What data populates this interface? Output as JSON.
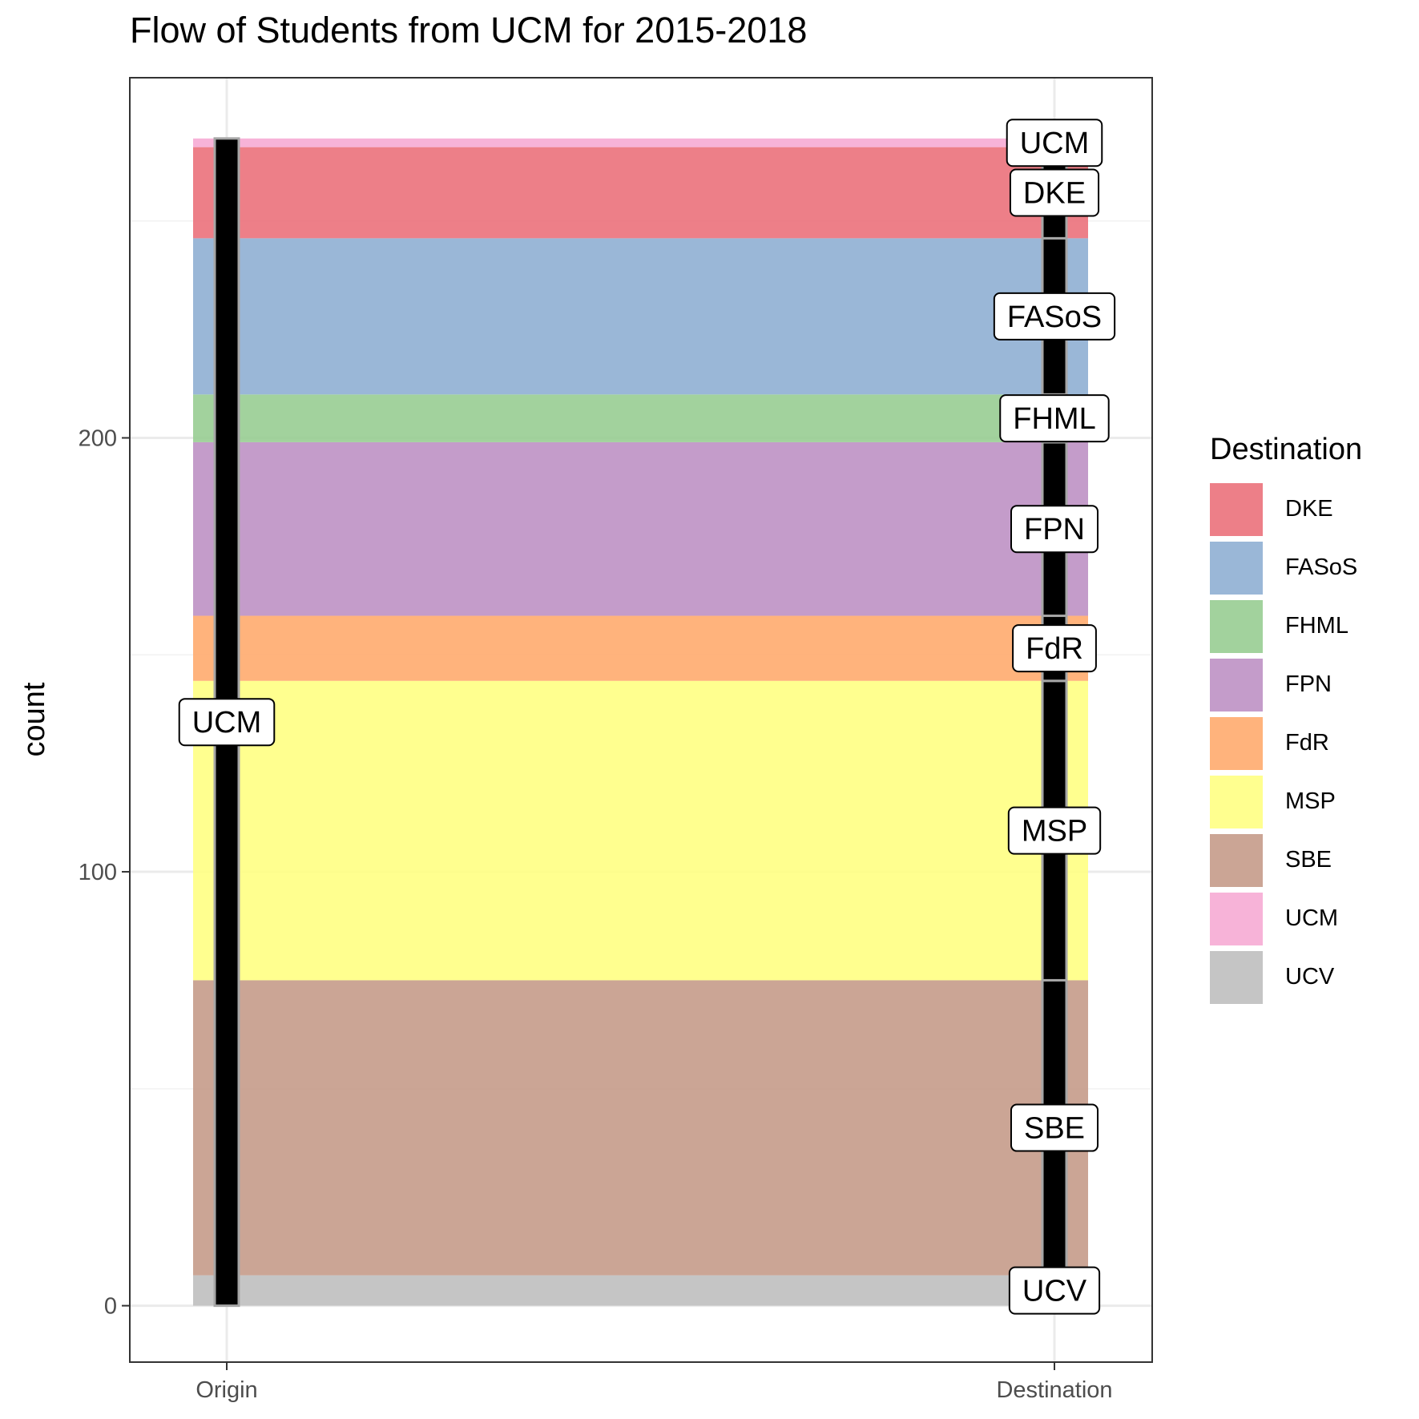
{
  "chart_data": {
    "type": "alluvial",
    "title": "Flow of Students from UCM for 2015-2018",
    "xlabel": "",
    "ylabel": "count",
    "axes": [
      "Origin",
      "Destination"
    ],
    "origin": "UCM",
    "ylim": [
      -13,
      283
    ],
    "yticks": [
      0,
      100,
      200
    ],
    "grid": true,
    "legend_title": "Destination",
    "legend_position": "right",
    "series": [
      {
        "name": "UCV",
        "value": 7,
        "color": "#bdbdbd"
      },
      {
        "name": "SBE",
        "value": 68,
        "color": "#c49886"
      },
      {
        "name": "MSP",
        "value": 69,
        "color": "#ffff80"
      },
      {
        "name": "FdR",
        "value": 15,
        "color": "#ffa86a"
      },
      {
        "name": "FPN",
        "value": 40,
        "color": "#bc8ec3"
      },
      {
        "name": "FHML",
        "value": 11,
        "color": "#95cc8f"
      },
      {
        "name": "FASoS",
        "value": 36,
        "color": "#8cadd1"
      },
      {
        "name": "DKE",
        "value": 21,
        "color": "#eb6d77"
      },
      {
        "name": "UCM",
        "value": 2,
        "color": "#f6a9d3"
      }
    ],
    "legend_order": [
      "DKE",
      "FASoS",
      "FHML",
      "FPN",
      "FdR",
      "MSP",
      "SBE",
      "UCM",
      "UCV"
    ]
  }
}
